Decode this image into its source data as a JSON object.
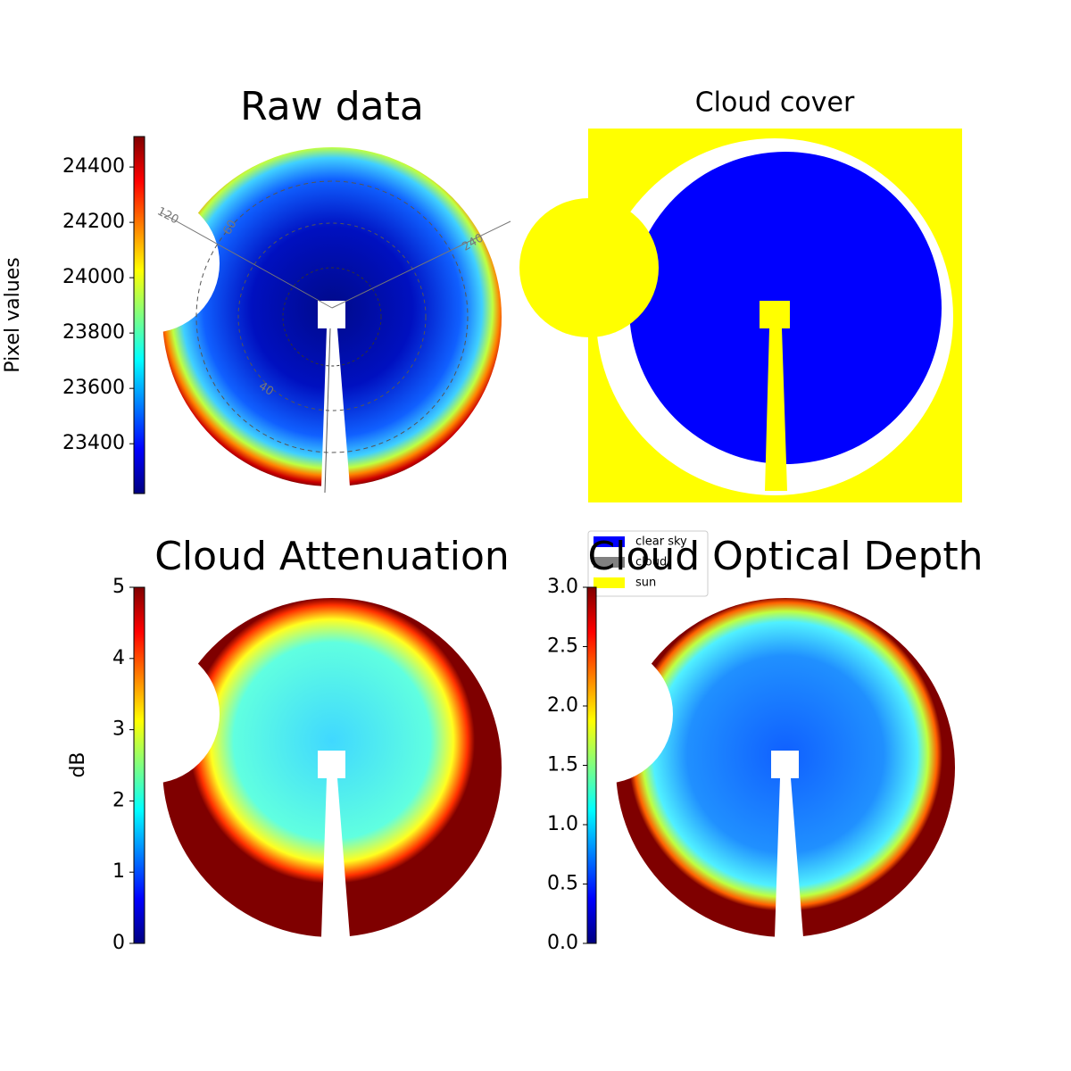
{
  "chart_data": [
    {
      "type": "image",
      "title": "Raw data",
      "colormap": "jet",
      "colorbar_label": "Pixel values",
      "ylim": [
        23220,
        24510
      ],
      "yticks": [
        23400,
        23600,
        23800,
        24000,
        24200,
        24400
      ],
      "annotations": [
        "120",
        "60",
        "240",
        "40"
      ]
    },
    {
      "type": "image",
      "title": "Cloud cover",
      "series": [
        {
          "name": "clear sky",
          "color": "#0000ff"
        },
        {
          "name": "cloud",
          "color": "#808080"
        },
        {
          "name": "sun",
          "color": "#ffff00"
        }
      ]
    },
    {
      "type": "image",
      "title": "Cloud Attenuation",
      "colormap": "jet",
      "colorbar_label": "dB",
      "ylim": [
        0,
        5
      ],
      "yticks": [
        0,
        1,
        2,
        3,
        4,
        5
      ]
    },
    {
      "type": "image",
      "title": "Cloud Optical Depth",
      "colormap": "jet",
      "ylim": [
        0,
        3
      ],
      "yticks": [
        {
          "value": 0,
          "label": "0.0"
        },
        0.5,
        {
          "value": 1,
          "label": "1.0"
        },
        1.5,
        {
          "value": 2,
          "label": "2.0"
        },
        2.5,
        {
          "value": 3,
          "label": "3.0"
        }
      ]
    }
  ]
}
